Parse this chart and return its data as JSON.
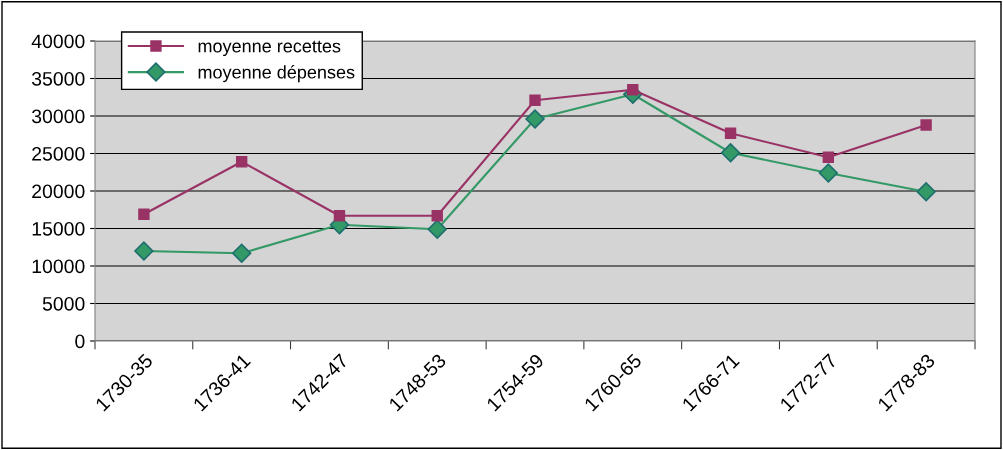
{
  "chart_data": {
    "type": "line",
    "categories": [
      "1730-35",
      "1736-41",
      "1742-47",
      "1748-53",
      "1754-59",
      "1760-65",
      "1766-71",
      "1772-77",
      "1778-83"
    ],
    "series": [
      {
        "name": "moyenne recettes",
        "color": "#993366",
        "marker": "square",
        "values": [
          16900,
          23900,
          16700,
          16700,
          32100,
          33500,
          27700,
          24500,
          28800
        ]
      },
      {
        "name": "moyenne dépenses",
        "color": "#339966",
        "marker": "diamond",
        "values": [
          12000,
          11700,
          15500,
          14900,
          29600,
          32900,
          25100,
          22400,
          19900
        ]
      }
    ],
    "ylim": [
      0,
      40000
    ],
    "yticks": [
      0,
      5000,
      10000,
      15000,
      20000,
      25000,
      30000,
      35000,
      40000
    ],
    "grid": "y",
    "legend": "top left"
  }
}
